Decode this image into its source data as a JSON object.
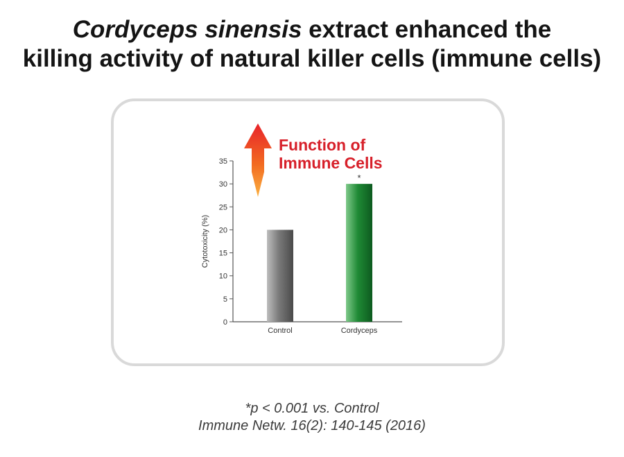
{
  "header": {
    "title_em": "Cordyceps sinensis",
    "title_rest": " extract enhanced the",
    "title_line2": "killing activity of natural killer cells (immune cells)"
  },
  "annotation": {
    "line1": "Function of",
    "line2": "Immune Cells",
    "arrow_icon": "up-arrow-icon"
  },
  "footnote": {
    "line1": "*p < 0.001 vs. Control",
    "line2": "Immune Netw. 16(2): 140-145 (2016)"
  },
  "chart_data": {
    "type": "bar",
    "categories": [
      "Control",
      "Cordyceps"
    ],
    "values": [
      20,
      30
    ],
    "ylabel": "Cytotoxicity (%)",
    "ylim": [
      0,
      35
    ],
    "yticks": [
      0,
      5,
      10,
      15,
      20,
      25,
      30,
      35
    ],
    "bar_labels": [
      "",
      "*"
    ],
    "grid": false,
    "colors": [
      "#6e6e6e",
      "#1f7a2e"
    ]
  }
}
